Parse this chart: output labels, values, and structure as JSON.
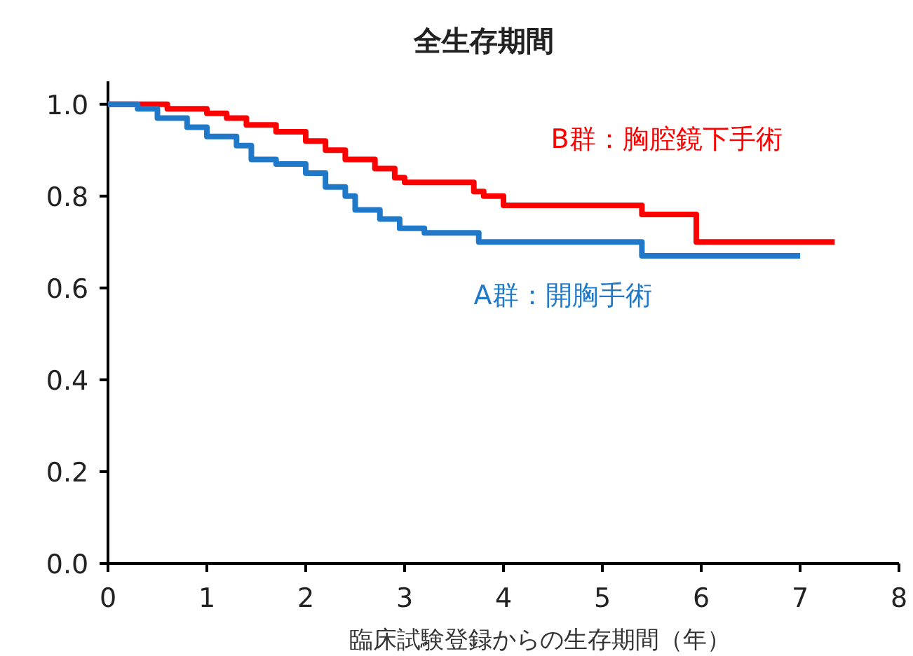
{
  "chart_data": {
    "type": "step",
    "title": "全生存期間",
    "xlabel": "臨床試験登録からの生存期間（年）",
    "xlim": [
      0,
      8
    ],
    "xticks": [
      0,
      1,
      2,
      3,
      4,
      5,
      6,
      7,
      8
    ],
    "ylim": [
      0,
      1.05
    ],
    "yticks": [
      {
        "value": 0,
        "label": "0.0"
      },
      {
        "value": 0.2,
        "label": "0.2"
      },
      {
        "value": 0.4,
        "label": "0.4"
      },
      {
        "value": 0.6,
        "label": "0.6"
      },
      {
        "value": 0.8,
        "label": "0.8"
      },
      {
        "value": 1,
        "label": "1.0"
      }
    ],
    "legend": false,
    "grid": false,
    "series": [
      {
        "name": "B群：胸腔鏡下手術",
        "color": "#ff0000",
        "x": [
          0,
          0.6,
          1.0,
          1.2,
          1.4,
          1.7,
          2.0,
          2.2,
          2.4,
          2.7,
          2.9,
          3.0,
          3.7,
          3.8,
          4.0,
          5.4,
          5.95,
          7.35
        ],
        "values": [
          1.0,
          0.99,
          0.98,
          0.97,
          0.955,
          0.94,
          0.92,
          0.9,
          0.88,
          0.86,
          0.84,
          0.83,
          0.81,
          0.8,
          0.78,
          0.76,
          0.7,
          0.7
        ]
      },
      {
        "name": "A群：開胸手術",
        "color": "#1f78c8",
        "x": [
          0,
          0.3,
          0.5,
          0.8,
          1.0,
          1.3,
          1.45,
          1.7,
          2.0,
          2.2,
          2.4,
          2.5,
          2.75,
          2.95,
          3.2,
          3.75,
          5.4,
          7.0
        ],
        "values": [
          1.0,
          0.99,
          0.97,
          0.95,
          0.93,
          0.91,
          0.88,
          0.87,
          0.85,
          0.82,
          0.8,
          0.77,
          0.75,
          0.73,
          0.72,
          0.7,
          0.67,
          0.67
        ]
      }
    ]
  }
}
